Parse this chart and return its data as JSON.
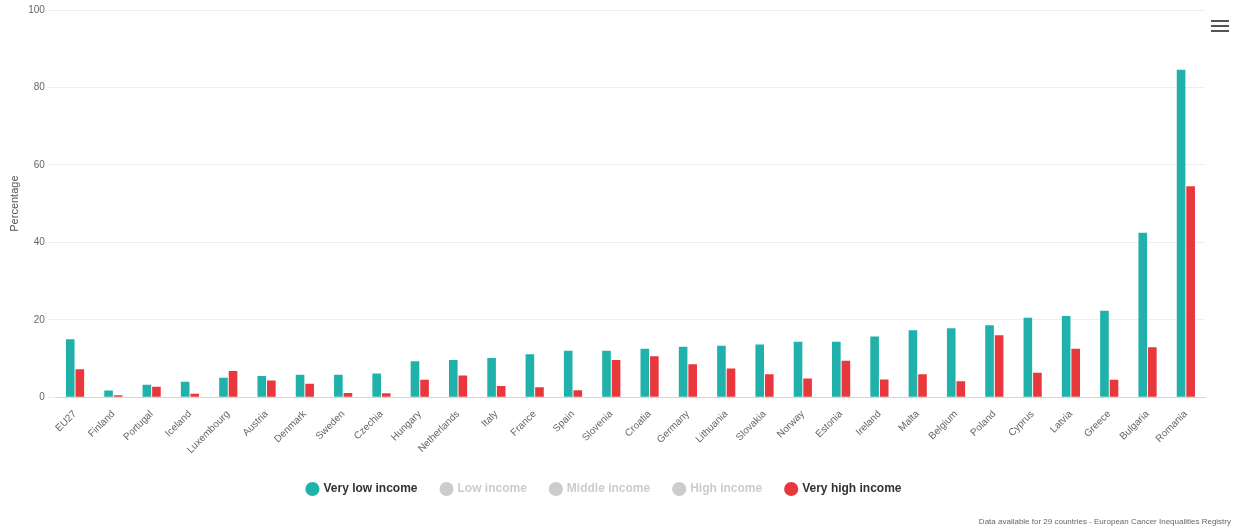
{
  "chart_data": {
    "type": "bar",
    "ylabel": "Percentage",
    "categories": [
      "EU27",
      "Finland",
      "Portugal",
      "Iceland",
      "Luxembourg",
      "Austria",
      "Denmark",
      "Sweden",
      "Czechia",
      "Hungary",
      "Netherlands",
      "Italy",
      "France",
      "Spain",
      "Slovenia",
      "Croatia",
      "Germany",
      "Lithuania",
      "Slovakia",
      "Norway",
      "Estonia",
      "Ireland",
      "Malta",
      "Belgium",
      "Poland",
      "Cyprus",
      "Latvia",
      "Greece",
      "Bulgaria",
      "Romania"
    ],
    "series": [
      {
        "name": "Very low income",
        "color": "#20b2aa",
        "values": [
          15,
          1.7,
          3.2,
          4.0,
          5.0,
          5.5,
          5.8,
          5.8,
          6.1,
          9.3,
          9.6,
          10.1,
          11.1,
          12.0,
          12.0,
          12.5,
          13.0,
          13.3,
          13.6,
          14.3,
          14.3,
          15.7,
          17.3,
          17.8,
          18.6,
          20.5,
          21.0,
          22.3,
          42.5,
          84.6
        ]
      },
      {
        "name": "Low income",
        "color": "#cccccc",
        "values": [
          null,
          null,
          null,
          null,
          null,
          null,
          null,
          null,
          null,
          null,
          null,
          null,
          null,
          null,
          null,
          null,
          null,
          null,
          null,
          null,
          null,
          null,
          null,
          null,
          null,
          null,
          null,
          null,
          null,
          null
        ]
      },
      {
        "name": "Middle income",
        "color": "#cccccc",
        "values": [
          null,
          null,
          null,
          null,
          null,
          null,
          null,
          null,
          null,
          null,
          null,
          null,
          null,
          null,
          null,
          null,
          null,
          null,
          null,
          null,
          null,
          null,
          null,
          null,
          null,
          null,
          null,
          null,
          null,
          null
        ]
      },
      {
        "name": "High income",
        "color": "#cccccc",
        "values": [
          null,
          null,
          null,
          null,
          null,
          null,
          null,
          null,
          null,
          null,
          null,
          null,
          null,
          null,
          null,
          null,
          null,
          null,
          null,
          null,
          null,
          null,
          null,
          null,
          null,
          null,
          null,
          null,
          null,
          null
        ]
      },
      {
        "name": "Very high income",
        "color": "#e8383d",
        "values": [
          7.2,
          0.5,
          2.7,
          0.9,
          6.8,
          4.3,
          3.5,
          1.1,
          1.0,
          4.5,
          5.6,
          2.9,
          2.6,
          1.8,
          9.6,
          10.6,
          8.5,
          7.4,
          5.9,
          4.8,
          9.4,
          4.6,
          5.9,
          4.1,
          16.0,
          6.3,
          12.5,
          4.5,
          12.9,
          54.5
        ]
      }
    ],
    "ylim": [
      0,
      100
    ],
    "yticks": [
      0,
      20,
      40,
      60,
      80,
      100
    ],
    "grid": "y",
    "legend": "bottom",
    "annotations": [
      "Data available for 29 countries  -  European Cancer Inequalities Registry"
    ]
  }
}
